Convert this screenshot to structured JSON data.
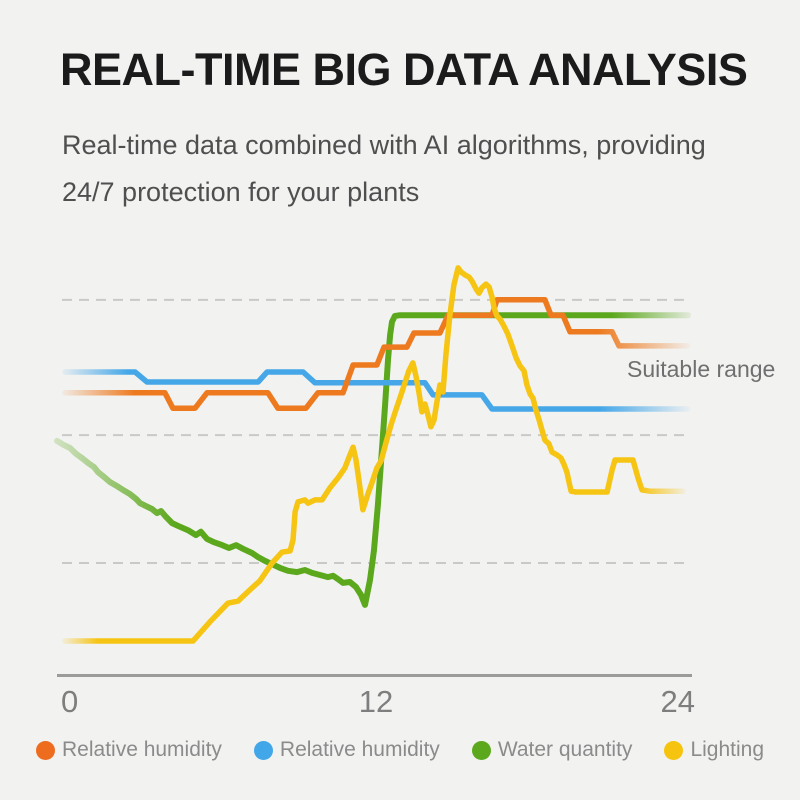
{
  "page": {
    "background": "#F2F2F1"
  },
  "header": {
    "title": "REAL-TIME BIG DATA ANALYSIS",
    "subtitle_line1": "Real-time data combined with AI algorithms, providing",
    "subtitle_line2": "24/7 protection for your plants"
  },
  "chart": {
    "annotation": "Suitable range",
    "x_ticks": [
      "0",
      "12",
      "24"
    ]
  },
  "chart_data": {
    "type": "line",
    "title": "",
    "x_range": [
      0,
      24
    ],
    "x_tick_values": [
      0,
      12,
      24
    ],
    "y_range": [
      0,
      100
    ],
    "grid": "dashed-horizontal",
    "gridlines_y_pct": [
      90.4,
      57.8,
      27.0
    ],
    "annotation": "Suitable range",
    "legend_position": "bottom",
    "series": [
      {
        "name": "Relative humidity",
        "color": "#ED7A1E",
        "points": [
          [
            0.3,
            68
          ],
          [
            4.08,
            68
          ],
          [
            4.38,
            64.3
          ],
          [
            5.22,
            64.3
          ],
          [
            5.67,
            68
          ],
          [
            7.97,
            68
          ],
          [
            8.35,
            64.3
          ],
          [
            9.41,
            64.3
          ],
          [
            9.86,
            68
          ],
          [
            10.81,
            68
          ],
          [
            11.19,
            74.7
          ],
          [
            12.09,
            74.7
          ],
          [
            12.36,
            79
          ],
          [
            13.23,
            79
          ],
          [
            13.49,
            82.4
          ],
          [
            14.47,
            82.4
          ],
          [
            14.78,
            86.7
          ],
          [
            16.44,
            86.7
          ],
          [
            16.63,
            90.4
          ],
          [
            18.44,
            90.4
          ],
          [
            18.67,
            86.7
          ],
          [
            19.12,
            86.7
          ],
          [
            19.39,
            82.7
          ],
          [
            20.98,
            82.7
          ],
          [
            21.24,
            79.3
          ],
          [
            23.85,
            79.3
          ]
        ]
      },
      {
        "name": "Relative humidity",
        "color": "#45A7E8",
        "points": [
          [
            0.3,
            73
          ],
          [
            2.95,
            73
          ],
          [
            3.4,
            70.6
          ],
          [
            7.6,
            70.6
          ],
          [
            7.94,
            73
          ],
          [
            9.3,
            73
          ],
          [
            9.75,
            70.4
          ],
          [
            13.91,
            70.4
          ],
          [
            14.21,
            67.5
          ],
          [
            16.06,
            67.5
          ],
          [
            16.44,
            64.1
          ],
          [
            23.85,
            64.1
          ]
        ]
      },
      {
        "name": "Water quantity",
        "color": "#5CA81D",
        "points": [
          [
            0,
            56.4
          ],
          [
            0.26,
            55.4
          ],
          [
            0.49,
            54.7
          ],
          [
            0.72,
            53.3
          ],
          [
            0.94,
            52.3
          ],
          [
            1.17,
            51.1
          ],
          [
            1.4,
            50.1
          ],
          [
            1.55,
            48.9
          ],
          [
            1.78,
            47.7
          ],
          [
            2,
            46.5
          ],
          [
            2.27,
            45.5
          ],
          [
            2.49,
            44.6
          ],
          [
            2.76,
            43.6
          ],
          [
            2.99,
            42.4
          ],
          [
            3.14,
            41.4
          ],
          [
            3.36,
            40.7
          ],
          [
            3.59,
            40
          ],
          [
            3.78,
            39
          ],
          [
            3.93,
            39.5
          ],
          [
            4.12,
            38.1
          ],
          [
            4.35,
            36.6
          ],
          [
            4.65,
            35.7
          ],
          [
            4.95,
            34.9
          ],
          [
            5.25,
            33.7
          ],
          [
            5.44,
            34.5
          ],
          [
            5.67,
            32.8
          ],
          [
            5.93,
            32
          ],
          [
            6.24,
            31.3
          ],
          [
            6.5,
            30.6
          ],
          [
            6.77,
            31.3
          ],
          [
            7.03,
            30.4
          ],
          [
            7.37,
            29.4
          ],
          [
            7.6,
            28.4
          ],
          [
            7.86,
            27.5
          ],
          [
            8.13,
            26.7
          ],
          [
            8.43,
            25.8
          ],
          [
            8.73,
            25.1
          ],
          [
            9.07,
            24.8
          ],
          [
            9.37,
            25.3
          ],
          [
            9.64,
            24.6
          ],
          [
            9.94,
            24.1
          ],
          [
            10.24,
            23.6
          ],
          [
            10.43,
            23.9
          ],
          [
            10.62,
            23.1
          ],
          [
            10.81,
            22.2
          ],
          [
            11.07,
            22.4
          ],
          [
            11.3,
            21.2
          ],
          [
            11.49,
            19.3
          ],
          [
            11.64,
            16.9
          ],
          [
            11.83,
            22.9
          ],
          [
            11.98,
            30.1
          ],
          [
            12.13,
            41
          ],
          [
            12.28,
            54.2
          ],
          [
            12.4,
            65.1
          ],
          [
            12.51,
            75.9
          ],
          [
            12.59,
            81.9
          ],
          [
            12.66,
            85.1
          ],
          [
            12.77,
            86.5
          ],
          [
            12.96,
            86.7
          ],
          [
            23.85,
            86.7
          ]
        ]
      },
      {
        "name": "Lighting",
        "color": "#F6C412",
        "points": [
          [
            0.3,
            8.2
          ],
          [
            1.25,
            8.2
          ],
          [
            5.14,
            8.2
          ],
          [
            5.78,
            12.8
          ],
          [
            6.46,
            17.3
          ],
          [
            6.84,
            17.8
          ],
          [
            7.29,
            20.5
          ],
          [
            7.67,
            22.7
          ],
          [
            8.13,
            27
          ],
          [
            8.5,
            29.6
          ],
          [
            8.81,
            29.9
          ],
          [
            8.92,
            32.5
          ],
          [
            9,
            39.3
          ],
          [
            9.11,
            41.7
          ],
          [
            9.37,
            42.2
          ],
          [
            9.49,
            41.4
          ],
          [
            9.75,
            42.2
          ],
          [
            10.02,
            42.2
          ],
          [
            10.32,
            45.1
          ],
          [
            10.62,
            47.5
          ],
          [
            10.88,
            49.9
          ],
          [
            11.07,
            53
          ],
          [
            11.19,
            54.9
          ],
          [
            11.3,
            51.8
          ],
          [
            11.41,
            47
          ],
          [
            11.56,
            39.8
          ],
          [
            11.75,
            43.6
          ],
          [
            11.94,
            47
          ],
          [
            12.09,
            49.9
          ],
          [
            12.25,
            51.6
          ],
          [
            12.43,
            55.9
          ],
          [
            12.62,
            60.2
          ],
          [
            12.81,
            63.9
          ],
          [
            13,
            67.5
          ],
          [
            13.15,
            70.4
          ],
          [
            13.3,
            73.3
          ],
          [
            13.45,
            75.2
          ],
          [
            13.57,
            72
          ],
          [
            13.68,
            68.2
          ],
          [
            13.79,
            63.4
          ],
          [
            13.91,
            65.3
          ],
          [
            14.02,
            62.7
          ],
          [
            14.13,
            59.8
          ],
          [
            14.25,
            61.4
          ],
          [
            14.36,
            65.8
          ],
          [
            14.47,
            69.9
          ],
          [
            14.59,
            68.2
          ],
          [
            14.7,
            77.1
          ],
          [
            14.85,
            86.7
          ],
          [
            15,
            94
          ],
          [
            15.16,
            98.1
          ],
          [
            15.27,
            97.1
          ],
          [
            15.42,
            96.4
          ],
          [
            15.57,
            95.9
          ],
          [
            15.69,
            94.9
          ],
          [
            15.84,
            93
          ],
          [
            15.95,
            92
          ],
          [
            16.06,
            93.3
          ],
          [
            16.21,
            94.2
          ],
          [
            16.33,
            93.5
          ],
          [
            16.44,
            91.1
          ],
          [
            16.52,
            88.4
          ],
          [
            16.63,
            86.5
          ],
          [
            16.74,
            85.8
          ],
          [
            16.89,
            84.1
          ],
          [
            17.04,
            82.2
          ],
          [
            17.2,
            79.3
          ],
          [
            17.35,
            76.4
          ],
          [
            17.5,
            74.5
          ],
          [
            17.65,
            73.3
          ],
          [
            17.76,
            69.9
          ],
          [
            17.88,
            67.7
          ],
          [
            17.99,
            66.7
          ],
          [
            18.1,
            63.9
          ],
          [
            18.21,
            61.7
          ],
          [
            18.33,
            59
          ],
          [
            18.44,
            56.6
          ],
          [
            18.59,
            55.7
          ],
          [
            18.71,
            53.7
          ],
          [
            18.9,
            53
          ],
          [
            19.05,
            52.3
          ],
          [
            19.16,
            50.8
          ],
          [
            19.27,
            48.9
          ],
          [
            19.35,
            46.5
          ],
          [
            19.43,
            44.3
          ],
          [
            19.61,
            44.1
          ],
          [
            20.79,
            44.1
          ],
          [
            20.98,
            49.4
          ],
          [
            21.09,
            51.8
          ],
          [
            21.77,
            51.8
          ],
          [
            21.96,
            47.5
          ],
          [
            22.11,
            44.6
          ],
          [
            22.41,
            44.3
          ],
          [
            23.66,
            44.3
          ]
        ]
      }
    ]
  },
  "legend": [
    {
      "label": "Relative humidity",
      "color": "#ED6C1D"
    },
    {
      "label": "Relative humidity",
      "color": "#41A7E8"
    },
    {
      "label": "Water quantity",
      "color": "#5CA81D"
    },
    {
      "label": "Lighting",
      "color": "#F6C40E"
    }
  ]
}
